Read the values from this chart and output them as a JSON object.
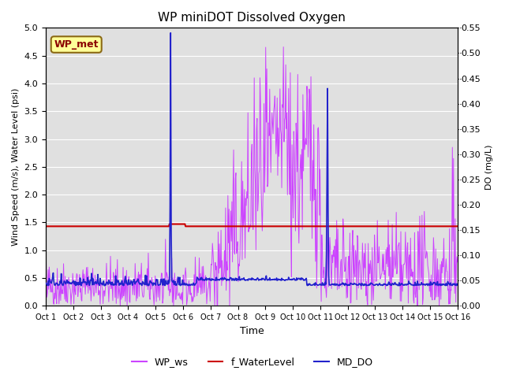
{
  "title": "WP miniDOT Dissolved Oxygen",
  "ylabel_left": "Wind Speed (m/s), Water Level (psi)",
  "ylabel_right": "DO (mg/L)",
  "xlabel": "Time",
  "annotation_text": "WP_met",
  "annotation_color": "#8B0000",
  "annotation_bg": "#FFFF99",
  "annotation_border": "#8B6914",
  "ylim_left": [
    0.0,
    5.0
  ],
  "ylim_right": [
    0.0,
    0.55
  ],
  "background_color": "#E0E0E0",
  "grid_color": "white",
  "ws_color": "#CC44FF",
  "wl_color": "#CC0000",
  "do_color": "#2222CC",
  "legend_labels": [
    "WP_ws",
    "f_WaterLevel",
    "MD_DO"
  ],
  "wl_value": 1.43,
  "x_tick_labels": [
    "Oct 1",
    "Oct 2",
    "Oct 3",
    "Oct 4",
    "Oct 5",
    "Oct 6",
    "Oct 7",
    "Oct 8",
    "Oct 9",
    "Oct 10",
    "Oct 11",
    "Oct 12",
    "Oct 13",
    "Oct 14",
    "Oct 15",
    "Oct 16"
  ]
}
